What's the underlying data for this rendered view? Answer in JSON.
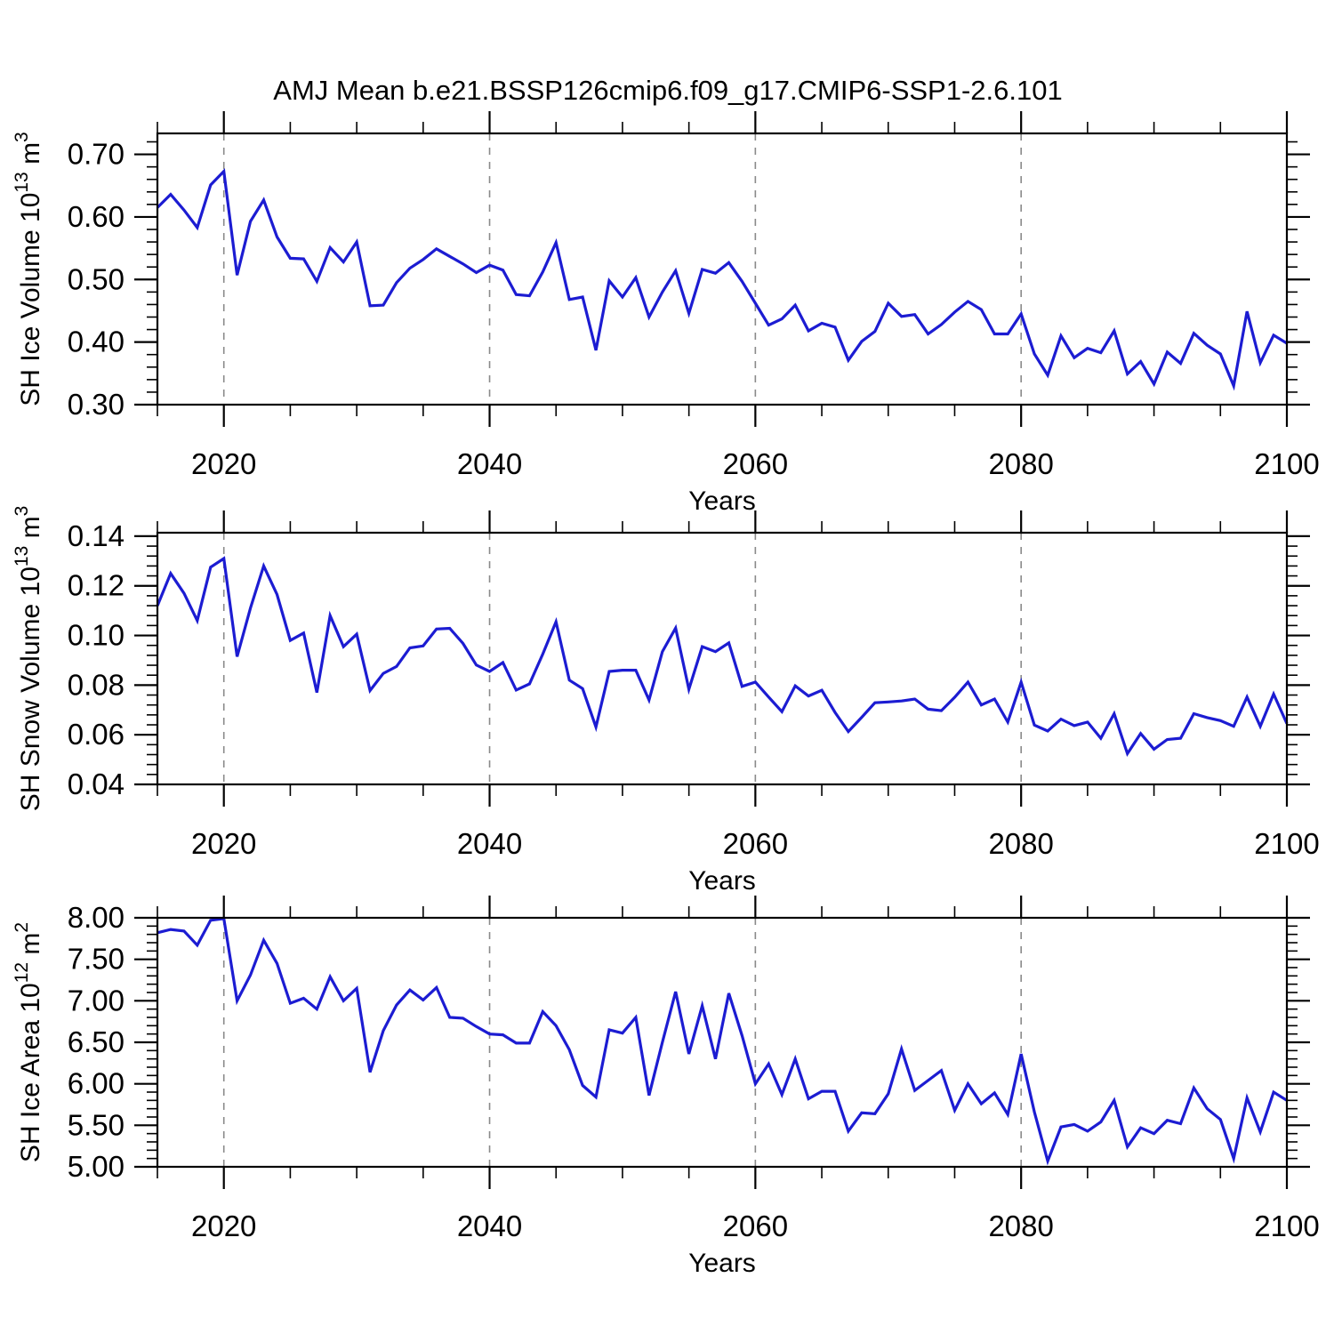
{
  "chart_data": {
    "type": "line",
    "title": "AMJ Mean b.e21.BSSP126cmip6.f09_g17.CMIP6-SSP1-2.6.101",
    "line_color": "#1c1cd2",
    "grid_color": "#8a8a8a",
    "frame_color": "#000000",
    "x_range": [
      2015,
      2100
    ],
    "grid_years": [
      2020,
      2040,
      2060,
      2080
    ],
    "x_major_ticks": [
      2020,
      2040,
      2060,
      2080,
      2100
    ],
    "x_major_labels": [
      "2020",
      "2040",
      "2060",
      "2080",
      "2100"
    ],
    "x_minor_ticks": [
      2015,
      2025,
      2030,
      2035,
      2045,
      2050,
      2055,
      2065,
      2070,
      2075,
      2085,
      2090,
      2095
    ],
    "years": [
      2015,
      2016,
      2017,
      2018,
      2019,
      2020,
      2021,
      2022,
      2023,
      2024,
      2025,
      2026,
      2027,
      2028,
      2029,
      2030,
      2031,
      2032,
      2033,
      2034,
      2035,
      2036,
      2037,
      2038,
      2039,
      2040,
      2041,
      2042,
      2043,
      2044,
      2045,
      2046,
      2047,
      2048,
      2049,
      2050,
      2051,
      2052,
      2053,
      2054,
      2055,
      2056,
      2057,
      2058,
      2059,
      2060,
      2061,
      2062,
      2063,
      2064,
      2065,
      2066,
      2067,
      2068,
      2069,
      2070,
      2071,
      2072,
      2073,
      2074,
      2075,
      2076,
      2077,
      2078,
      2079,
      2080,
      2081,
      2082,
      2083,
      2084,
      2085,
      2086,
      2087,
      2088,
      2089,
      2090,
      2091,
      2092,
      2093,
      2094,
      2095,
      2096,
      2097,
      2098,
      2099,
      2100
    ],
    "panels": [
      {
        "id": "sh-ice-volume",
        "ylabel_parts": [
          {
            "t": "SH Ice Volume 10"
          },
          {
            "t": "13",
            "sup": true
          },
          {
            "t": " m"
          },
          {
            "t": "3",
            "sup": true
          }
        ],
        "xlabel": "Years",
        "ylim": [
          0.3,
          0.7335
        ],
        "ytick_values": [
          0.3,
          0.4,
          0.5,
          0.6,
          0.7
        ],
        "ytick_labels": [
          "0.30",
          "0.40",
          "0.50",
          "0.60",
          "0.70"
        ],
        "y_major_step": 0.1,
        "y_minor_step": 0.02,
        "values": [
          0.615,
          0.636,
          0.611,
          0.583,
          0.651,
          0.673,
          0.507,
          0.593,
          0.627,
          0.568,
          0.534,
          0.533,
          0.497,
          0.551,
          0.528,
          0.56,
          0.458,
          0.459,
          0.495,
          0.518,
          0.532,
          0.549,
          0.537,
          0.525,
          0.511,
          0.523,
          0.515,
          0.476,
          0.474,
          0.512,
          0.559,
          0.468,
          0.472,
          0.387,
          0.498,
          0.472,
          0.503,
          0.44,
          0.48,
          0.514,
          0.446,
          0.516,
          0.51,
          0.527,
          0.497,
          0.462,
          0.427,
          0.437,
          0.459,
          0.418,
          0.43,
          0.424,
          0.371,
          0.401,
          0.417,
          0.462,
          0.441,
          0.444,
          0.413,
          0.428,
          0.448,
          0.465,
          0.452,
          0.413,
          0.413,
          0.445,
          0.381,
          0.347,
          0.41,
          0.375,
          0.39,
          0.383,
          0.418,
          0.349,
          0.369,
          0.333,
          0.384,
          0.366,
          0.414,
          0.395,
          0.381,
          0.33,
          0.449,
          0.367,
          0.411,
          0.398
        ]
      },
      {
        "id": "sh-snow-volume",
        "ylabel_parts": [
          {
            "t": "SH Snow Volume 10"
          },
          {
            "t": "13",
            "sup": true
          },
          {
            "t": " m"
          },
          {
            "t": "3",
            "sup": true
          }
        ],
        "xlabel": "Years",
        "ylim": [
          0.04,
          0.1414
        ],
        "ytick_values": [
          0.04,
          0.06,
          0.08,
          0.1,
          0.12,
          0.14
        ],
        "ytick_labels": [
          "0.04",
          "0.06",
          "0.08",
          "0.10",
          "0.12",
          "0.14"
        ],
        "y_major_step": 0.02,
        "y_minor_step": 0.004,
        "values": [
          0.112,
          0.125,
          0.117,
          0.106,
          0.1275,
          0.131,
          0.0915,
          0.111,
          0.128,
          0.1165,
          0.098,
          0.101,
          0.077,
          0.108,
          0.0955,
          0.1005,
          0.0778,
          0.0847,
          0.0875,
          0.095,
          0.0958,
          0.1026,
          0.1029,
          0.0968,
          0.0881,
          0.0855,
          0.0891,
          0.078,
          0.0805,
          0.0925,
          0.1055,
          0.082,
          0.0786,
          0.0631,
          0.0855,
          0.086,
          0.086,
          0.074,
          0.0935,
          0.103,
          0.0783,
          0.0955,
          0.0935,
          0.097,
          0.0795,
          0.0812,
          0.0752,
          0.0693,
          0.0797,
          0.0756,
          0.0779,
          0.069,
          0.0613,
          0.067,
          0.0729,
          0.0732,
          0.0736,
          0.0744,
          0.0703,
          0.0697,
          0.0751,
          0.0812,
          0.072,
          0.0744,
          0.0651,
          0.0812,
          0.0639,
          0.0615,
          0.0663,
          0.0637,
          0.0651,
          0.0586,
          0.0685,
          0.0524,
          0.0605,
          0.0542,
          0.0581,
          0.0586,
          0.0685,
          0.0669,
          0.0657,
          0.0634,
          0.0752,
          0.0634,
          0.0764,
          0.0645
        ]
      },
      {
        "id": "sh-ice-area",
        "ylabel_parts": [
          {
            "t": "SH Ice Area 10"
          },
          {
            "t": "12",
            "sup": true
          },
          {
            "t": " m"
          },
          {
            "t": "2",
            "sup": true
          }
        ],
        "xlabel": "Years",
        "ylim": [
          5.0,
          8.0
        ],
        "ytick_values": [
          5.0,
          5.5,
          6.0,
          6.5,
          7.0,
          7.5,
          8.0
        ],
        "ytick_labels": [
          "5.00",
          "5.50",
          "6.00",
          "6.50",
          "7.00",
          "7.50",
          "8.00"
        ],
        "y_major_step": 0.5,
        "y_minor_step": 0.1,
        "values": [
          7.82,
          7.86,
          7.84,
          7.67,
          7.97,
          7.99,
          7.0,
          7.31,
          7.73,
          7.45,
          6.97,
          7.03,
          6.9,
          7.29,
          7.0,
          7.15,
          6.14,
          6.64,
          6.95,
          7.13,
          7.01,
          7.16,
          6.8,
          6.79,
          6.69,
          6.6,
          6.59,
          6.49,
          6.49,
          6.87,
          6.7,
          6.41,
          5.98,
          5.84,
          6.65,
          6.61,
          6.8,
          5.86,
          6.5,
          7.11,
          6.36,
          6.94,
          6.3,
          7.09,
          6.58,
          6.0,
          6.24,
          5.87,
          6.3,
          5.82,
          5.91,
          5.91,
          5.43,
          5.65,
          5.64,
          5.88,
          6.42,
          5.92,
          6.04,
          6.16,
          5.68,
          6.0,
          5.76,
          5.89,
          5.63,
          6.36,
          5.66,
          5.07,
          5.48,
          5.51,
          5.43,
          5.54,
          5.8,
          5.24,
          5.47,
          5.4,
          5.56,
          5.52,
          5.95,
          5.7,
          5.57,
          5.1,
          5.83,
          5.42,
          5.9,
          5.8
        ]
      }
    ]
  }
}
